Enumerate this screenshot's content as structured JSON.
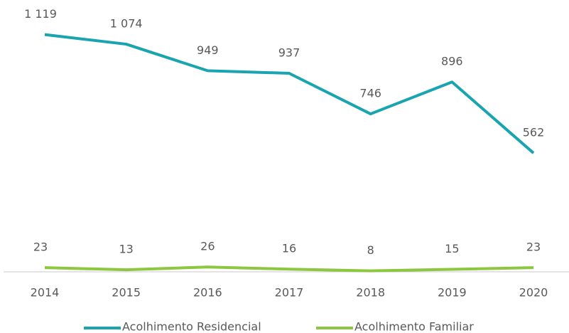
{
  "chart_data": {
    "type": "line",
    "categories": [
      "2014",
      "2015",
      "2016",
      "2017",
      "2018",
      "2019",
      "2020"
    ],
    "series": [
      {
        "name": "Acolhimento Residencial",
        "color": "#19a4b0",
        "values": [
          1119,
          1074,
          949,
          937,
          746,
          896,
          562
        ],
        "value_labels": [
          "1 119",
          "1 074",
          "949",
          "937",
          "746",
          "896",
          "562"
        ]
      },
      {
        "name": "Acolhimento Familiar",
        "color": "#8dc63f",
        "values": [
          23,
          13,
          26,
          16,
          8,
          15,
          23
        ]
      }
    ],
    "ylim": [
      0,
      1200
    ],
    "grid": false,
    "legend": "bottom"
  }
}
